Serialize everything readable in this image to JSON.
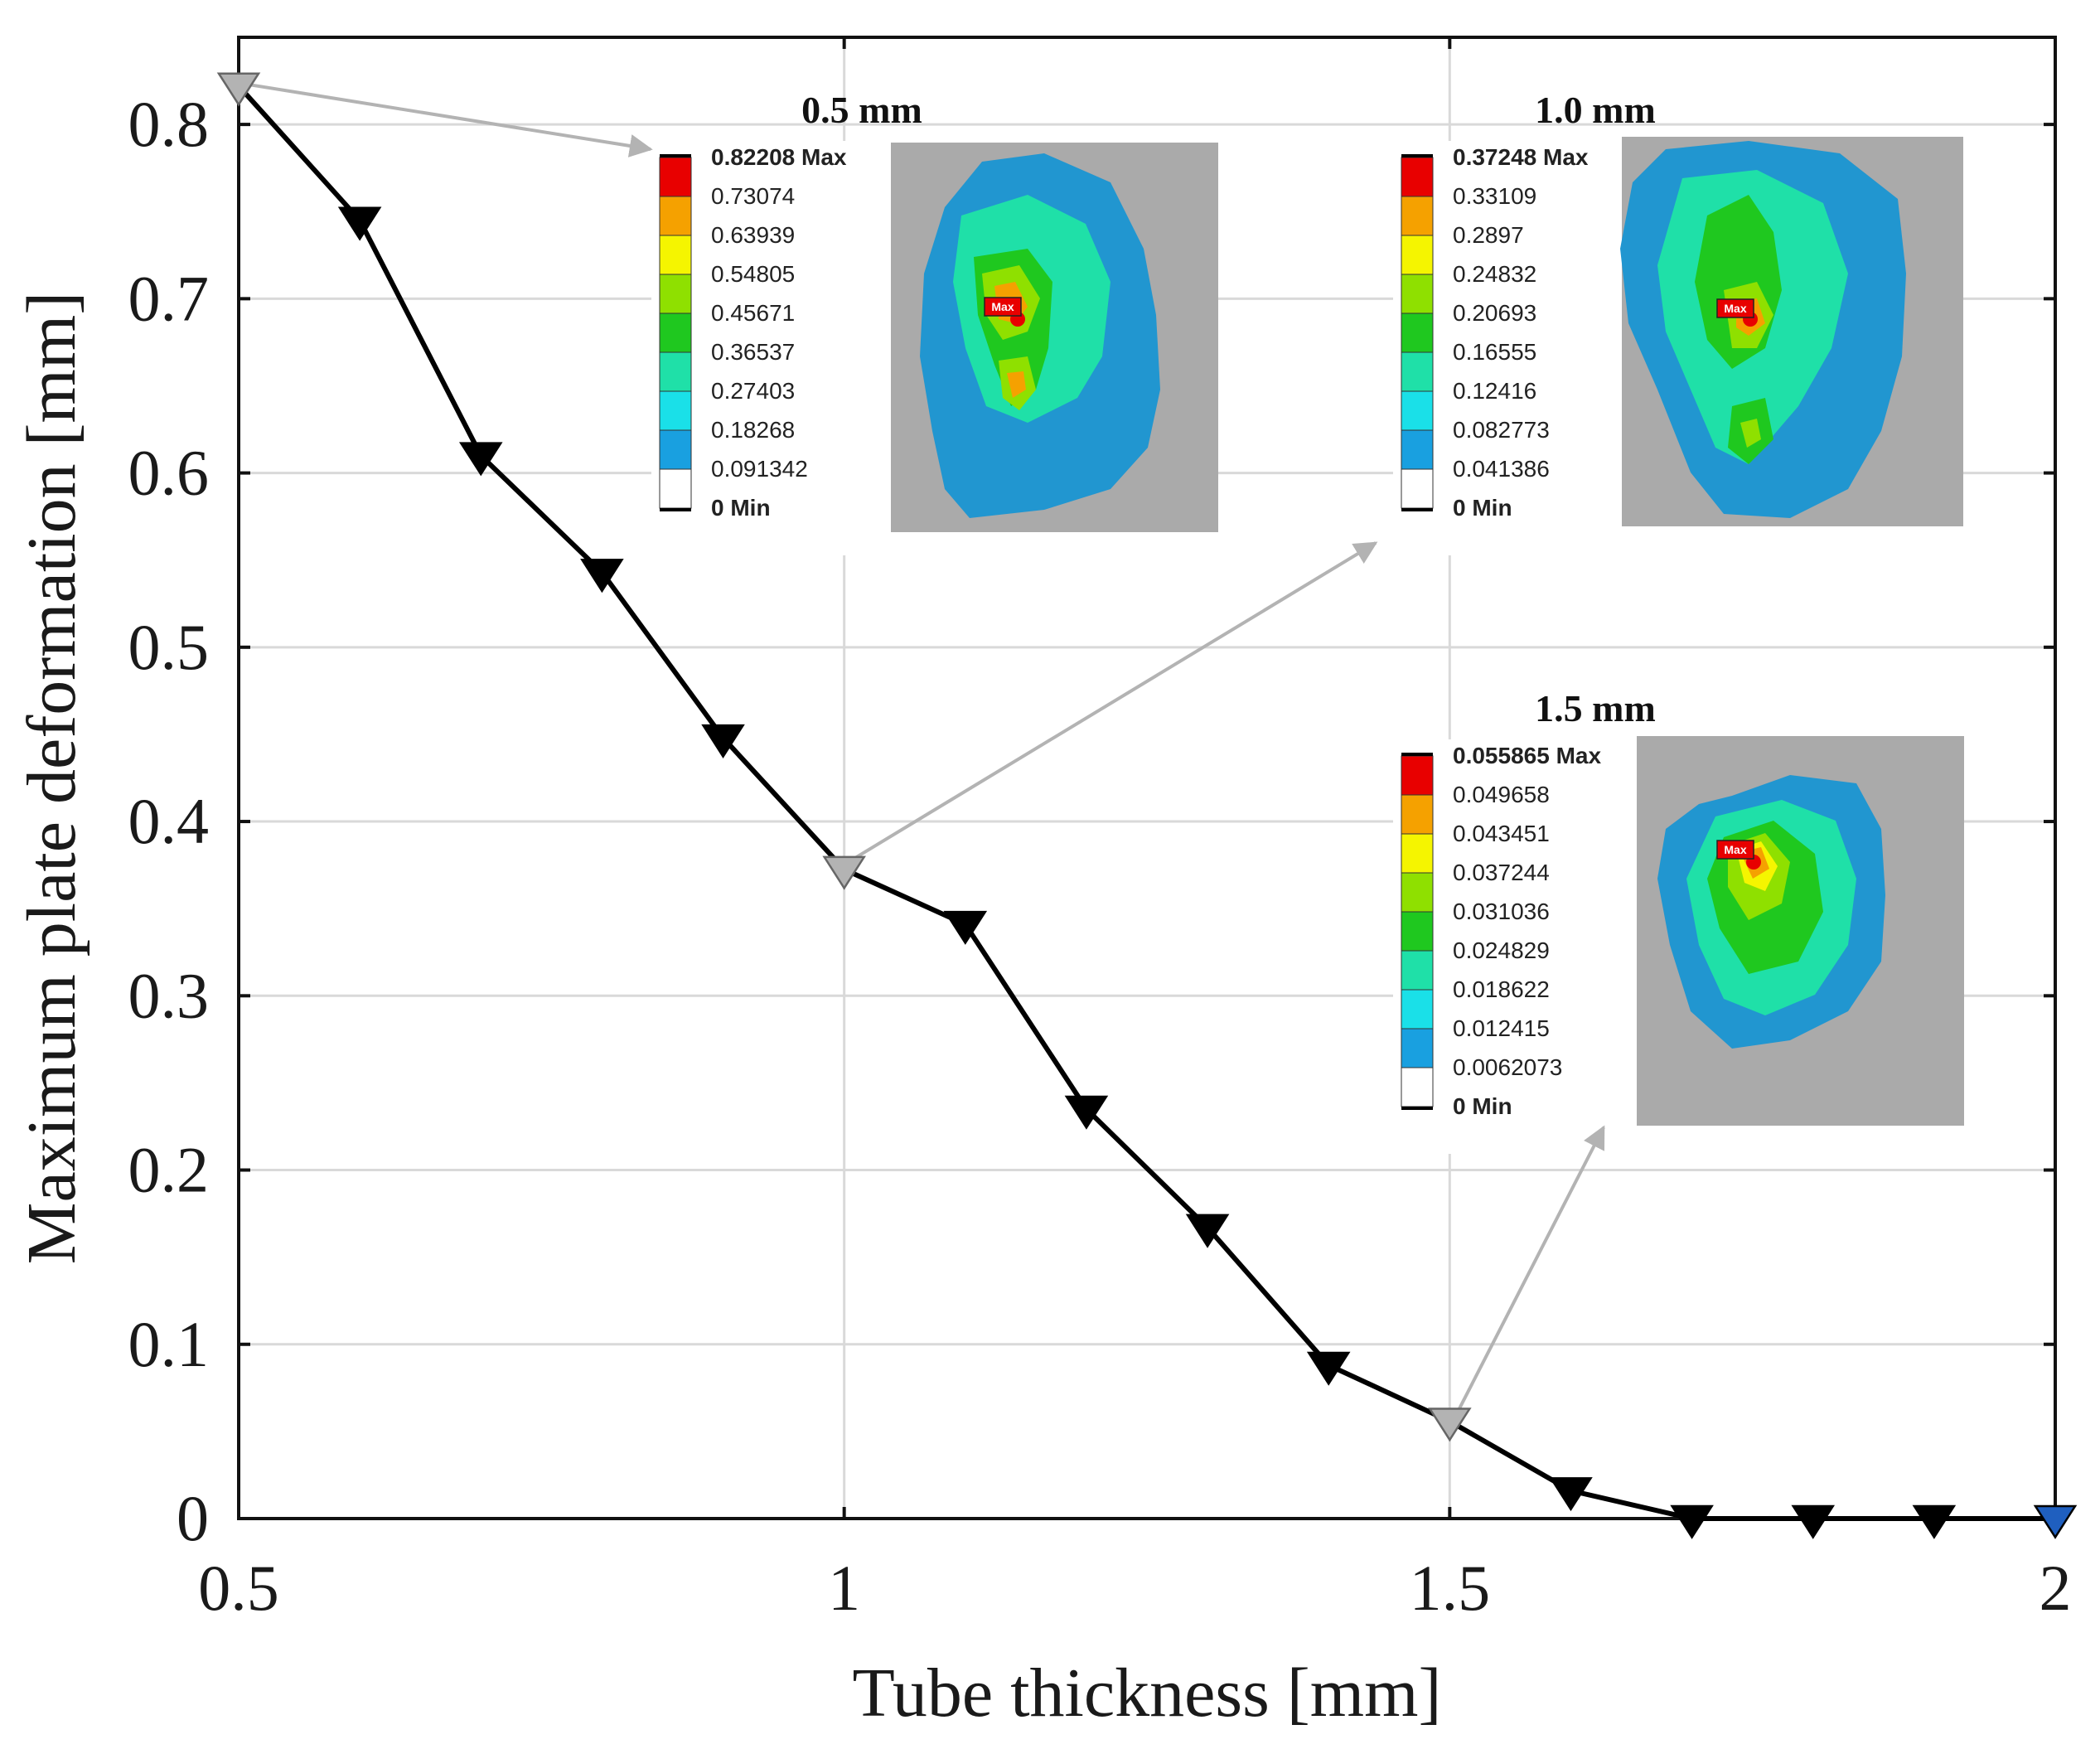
{
  "chart_data": {
    "type": "line",
    "title": "",
    "xlabel": "Tube thickness [mm]",
    "ylabel": "Maximum plate deformation [mm]",
    "xlim": [
      0.5,
      2
    ],
    "ylim": [
      0,
      0.85
    ],
    "x_ticks": [
      0.5,
      1,
      1.5,
      2
    ],
    "x_tick_labels": [
      "0.5",
      "1",
      "1.5",
      "2"
    ],
    "y_ticks": [
      0,
      0.1,
      0.2,
      0.3,
      0.4,
      0.5,
      0.6,
      0.7,
      0.8
    ],
    "y_tick_labels": [
      "0",
      "0.1",
      "0.2",
      "0.3",
      "0.4",
      "0.5",
      "0.6",
      "0.7",
      "0.8"
    ],
    "grid": true,
    "series": [
      {
        "name": "Maximum plate deformation",
        "marker": "down-triangle",
        "line_color": "#000000",
        "x": [
          0.5,
          0.6,
          0.7,
          0.8,
          0.9,
          1.0,
          1.1,
          1.2,
          1.3,
          1.4,
          1.5,
          1.6,
          1.7,
          1.8,
          1.9,
          2.0
        ],
        "y": [
          0.82208,
          0.745,
          0.61,
          0.543,
          0.448,
          0.37248,
          0.341,
          0.235,
          0.167,
          0.088,
          0.055865,
          0.016,
          0.0,
          0.0,
          0.0,
          0.0
        ],
        "marker_colors": [
          "#b3b3b3",
          "#000000",
          "#000000",
          "#000000",
          "#000000",
          "#b3b3b3",
          "#000000",
          "#000000",
          "#000000",
          "#000000",
          "#b3b3b3",
          "#000000",
          "#000000",
          "#000000",
          "#000000",
          "#1f5fbf"
        ]
      }
    ],
    "insets": [
      {
        "title": "0.5 mm",
        "legend": [
          "0.82208 Max",
          "0.73074",
          "0.63939",
          "0.54805",
          "0.45671",
          "0.36537",
          "0.27403",
          "0.18268",
          "0.091342",
          "0 Min"
        ]
      },
      {
        "title": "1.0 mm",
        "legend": [
          "0.37248 Max",
          "0.33109",
          "0.2897",
          "0.24832",
          "0.20693",
          "0.16555",
          "0.12416",
          "0.082773",
          "0.041386",
          "0 Min"
        ]
      },
      {
        "title": "1.5 mm",
        "legend": [
          "0.055865 Max",
          "0.049658",
          "0.043451",
          "0.037244",
          "0.031036",
          "0.024829",
          "0.018622",
          "0.012415",
          "0.0062073",
          "0 Min"
        ]
      }
    ],
    "max_tag": "Max",
    "colormap": [
      "#e80000",
      "#f5a100",
      "#f5f500",
      "#8fe000",
      "#1fc81f",
      "#1fe0a8",
      "#1ae0e8",
      "#19a0e0",
      "#ffffff"
    ]
  }
}
